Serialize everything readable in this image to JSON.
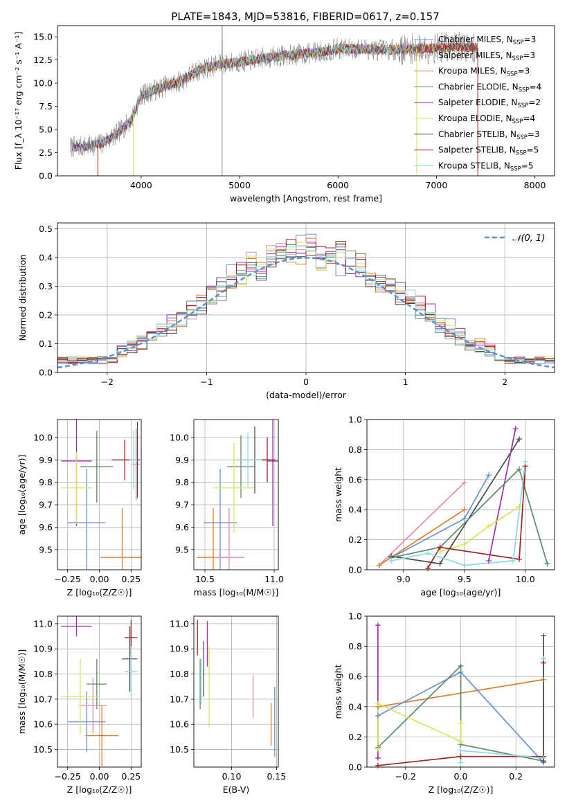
{
  "figure": {
    "title": "PLATE=1843, MJD=53816, FIBERID=0617, z=0.157"
  },
  "colors": {
    "blue": "#6a8fd8",
    "orange": "#e07b2a",
    "pink": "#e38ab0",
    "green": "#5b8a66",
    "purple": "#9c2fb0",
    "yellow": "#d6e85a",
    "dark": "#4a4a4a",
    "red": "#a51c1c",
    "cyan": "#86dbe4",
    "grey": "#8a8a8a"
  },
  "chart_data": [
    {
      "id": "spectrum",
      "type": "line",
      "xlabel": "wavelength [Angstrom, rest frame]",
      "ylabel": "Flux [f_λ 10⁻¹⁷ erg cm⁻² s⁻¹ A⁻¹]",
      "xlim": [
        3150,
        8200
      ],
      "ylim": [
        0,
        16.2
      ],
      "xticks": [
        4000,
        5000,
        6000,
        7000,
        8000
      ],
      "yticks": [
        0.0,
        2.5,
        5.0,
        7.5,
        10.0,
        12.5,
        15.0
      ],
      "grid": false,
      "legend_position": "top-right",
      "continuum": {
        "x": [
          3300,
          3450,
          3600,
          3750,
          3900,
          4000,
          4200,
          4400,
          4600,
          4800,
          5000,
          5200,
          5400,
          5600,
          5800,
          6000,
          6200,
          6400,
          6600,
          6800,
          7000,
          7200,
          7400
        ],
        "y": [
          3.1,
          3.2,
          3.5,
          4.5,
          6.0,
          8.7,
          9.5,
          10.2,
          11.5,
          12.0,
          12.3,
          12.6,
          12.9,
          13.1,
          13.3,
          13.7,
          13.7,
          13.6,
          13.6,
          13.7,
          13.8,
          13.9,
          13.8
        ]
      },
      "series": [
        {
          "name": "Chabrier MILES, N_SSP=3",
          "color": "#6a8fd8"
        },
        {
          "name": "Salpeter MILES, N_SSP=3",
          "color": "#e38ab0"
        },
        {
          "name": "Kroupa MILES, N_SSP=3",
          "color": "#e07b2a"
        },
        {
          "name": "Chabrier ELODIE, N_SSP=4",
          "color": "#5b8a66"
        },
        {
          "name": "Salpeter ELODIE, N_SSP=2",
          "color": "#9c2fb0"
        },
        {
          "name": "Kroupa ELODIE, N_SSP=4",
          "color": "#d6e85a"
        },
        {
          "name": "Chabrier STELIB, N_SSP=3",
          "color": "#4a4a4a"
        },
        {
          "name": "Salpeter STELIB, N_SSP=5",
          "color": "#a51c1c"
        },
        {
          "name": "Kroupa STELIB, N_SSP=5",
          "color": "#86dbe4"
        }
      ]
    },
    {
      "id": "residuals",
      "type": "line",
      "xlabel": "(data-model)/error",
      "ylabel": "Normed distribution",
      "xlim": [
        -2.5,
        2.5
      ],
      "ylim": [
        0,
        0.52
      ],
      "xticks": [
        -2,
        -1,
        0,
        1,
        2
      ],
      "yticks": [
        0.0,
        0.1,
        0.2,
        0.3,
        0.4,
        0.5
      ],
      "grid": true,
      "legend_position": "top-right",
      "reference": {
        "name": "𝒩(0, 1)",
        "color": "#5b8fd0"
      },
      "histogram_bin_width": 0.1
    },
    {
      "id": "age-vs-Z",
      "type": "scatter",
      "xlabel": "Z [log₁₀(Z/Z☉)]",
      "ylabel": "age  [log₁₀(age/yr)]",
      "xlim": [
        -0.33,
        0.33
      ],
      "ylim": [
        9.41,
        10.08
      ],
      "xticks": [
        -0.25,
        0.0,
        0.25
      ],
      "xtick_labels": [
        "−0.25",
        "0.00",
        "0.25"
      ],
      "yticks": [
        9.5,
        9.6,
        9.7,
        9.8,
        9.9,
        10.0
      ],
      "grid": true,
      "points": [
        {
          "x": -0.1,
          "y": 9.62,
          "ex": 0.15,
          "ey": 0.24,
          "color": "#6a8fd8"
        },
        {
          "x": 0.18,
          "y": 9.465,
          "ex": 0.17,
          "ey": 0.22,
          "color": "#e07b2a"
        },
        {
          "x": 0.29,
          "y": 9.88,
          "ex": 0.03,
          "ey": 0.16,
          "color": "#e38ab0"
        },
        {
          "x": -0.02,
          "y": 9.87,
          "ex": 0.13,
          "ey": 0.16,
          "color": "#5b8a66"
        },
        {
          "x": -0.18,
          "y": 9.895,
          "ex": 0.12,
          "ey": 0.29,
          "color": "#9c2fb0"
        },
        {
          "x": -0.18,
          "y": 9.775,
          "ex": 0.12,
          "ey": 0.16,
          "color": "#d6e85a"
        },
        {
          "x": 0.3,
          "y": 9.9,
          "ex": 0.02,
          "ey": 0.17,
          "color": "#4a4a4a"
        },
        {
          "x": 0.2,
          "y": 9.9,
          "ex": 0.1,
          "ey": 0.09,
          "color": "#a51c1c"
        },
        {
          "x": 0.27,
          "y": 9.9,
          "ex": 0.03,
          "ey": 0.13,
          "color": "#86dbe4"
        }
      ]
    },
    {
      "id": "age-vs-mass",
      "type": "scatter",
      "xlabel": "mass [log₁₀(M/M☉)]",
      "ylabel": "",
      "xlim": [
        10.42,
        11.03
      ],
      "ylim": [
        9.41,
        10.08
      ],
      "xticks": [
        10.5,
        11.0
      ],
      "xtick_labels": [
        "10.5",
        "11.0"
      ],
      "yticks": [
        9.5,
        9.6,
        9.7,
        9.8,
        9.9,
        10.0
      ],
      "grid": true,
      "points": [
        {
          "x": 10.61,
          "y": 9.62,
          "ex": 0.12,
          "ey": 0.24,
          "color": "#6a8fd8"
        },
        {
          "x": 10.56,
          "y": 9.465,
          "ex": 0.12,
          "ey": 0.22,
          "color": "#e07b2a"
        },
        {
          "x": 10.675,
          "y": 9.465,
          "ex": 0.11,
          "ey": 0.22,
          "color": "#e38ab0"
        },
        {
          "x": 10.76,
          "y": 9.87,
          "ex": 0.1,
          "ey": 0.14,
          "color": "#5b8a66"
        },
        {
          "x": 10.99,
          "y": 9.895,
          "ex": 0.04,
          "ey": 0.29,
          "color": "#9c2fb0"
        },
        {
          "x": 10.71,
          "y": 9.775,
          "ex": 0.15,
          "ey": 0.2,
          "color": "#d6e85a"
        },
        {
          "x": 10.86,
          "y": 9.9,
          "ex": 0.12,
          "ey": 0.15,
          "color": "#4a4a4a"
        },
        {
          "x": 10.95,
          "y": 9.9,
          "ex": 0.06,
          "ey": 0.1,
          "color": "#a51c1c"
        },
        {
          "x": 10.81,
          "y": 9.9,
          "ex": 0.1,
          "ey": 0.12,
          "color": "#86dbe4"
        }
      ]
    },
    {
      "id": "weight-vs-age",
      "type": "line",
      "xlabel": "age  [log₁₀(age/yr)]",
      "ylabel": "mass weight",
      "xlim": [
        8.7,
        10.24
      ],
      "ylim": [
        0,
        1.0
      ],
      "xticks": [
        9.0,
        9.5,
        10.0
      ],
      "xtick_labels": [
        "9.0",
        "9.5",
        "10.0"
      ],
      "yticks": [
        0.0,
        0.2,
        0.4,
        0.6,
        0.8,
        1.0
      ],
      "grid": true,
      "series": [
        {
          "color": "#e38ab0",
          "x": [
            8.8,
            9.5
          ],
          "y": [
            0.03,
            0.58
          ]
        },
        {
          "color": "#e07b2a",
          "x": [
            8.8,
            9.5
          ],
          "y": [
            0.03,
            0.4
          ]
        },
        {
          "color": "#6a8fd8",
          "x": [
            8.9,
            9.5,
            9.7
          ],
          "y": [
            0.08,
            0.34,
            0.63
          ]
        },
        {
          "color": "#4a4a4a",
          "x": [
            8.9,
            9.3,
            9.95
          ],
          "y": [
            0.09,
            0.04,
            0.87
          ]
        },
        {
          "color": "#9c2fb0",
          "x": [
            9.7,
            9.92
          ],
          "y": [
            0.06,
            0.94
          ]
        },
        {
          "color": "#5b8a66",
          "x": [
            8.9,
            9.3,
            9.95,
            10.18
          ],
          "y": [
            0.08,
            0.15,
            0.67,
            0.04
          ]
        },
        {
          "color": "#d6e85a",
          "x": [
            9.3,
            9.5,
            9.7,
            9.95
          ],
          "y": [
            0.12,
            0.17,
            0.29,
            0.42
          ]
        },
        {
          "color": "#a51c1c",
          "x": [
            9.2,
            9.3,
            9.95,
            10.0
          ],
          "y": [
            0.01,
            0.15,
            0.07,
            0.69
          ]
        },
        {
          "color": "#86dbe4",
          "x": [
            8.9,
            9.2,
            9.5,
            9.9,
            10.0
          ],
          "y": [
            0.06,
            0.11,
            0.03,
            0.06,
            0.72
          ]
        }
      ]
    },
    {
      "id": "mass-vs-Z",
      "type": "scatter",
      "xlabel": "Z [log₁₀(Z/Z☉)]",
      "ylabel": "mass [log₁₀(M/M☉)]",
      "xlim": [
        -0.33,
        0.33
      ],
      "ylim": [
        10.43,
        11.03
      ],
      "xticks": [
        -0.25,
        0.0,
        0.25
      ],
      "xtick_labels": [
        "−0.25",
        "0.00",
        "0.25"
      ],
      "yticks": [
        10.5,
        10.6,
        10.7,
        10.8,
        10.9,
        11.0
      ],
      "grid": true,
      "points": [
        {
          "x": -0.1,
          "y": 10.61,
          "ex": 0.15,
          "ey": 0.12,
          "color": "#6a8fd8"
        },
        {
          "x": 0.02,
          "y": 10.555,
          "ex": 0.13,
          "ey": 0.12,
          "color": "#e07b2a"
        },
        {
          "x": -0.05,
          "y": 10.675,
          "ex": 0.11,
          "ey": 0.11,
          "color": "#e38ab0"
        },
        {
          "x": -0.02,
          "y": 10.76,
          "ex": 0.08,
          "ey": 0.1,
          "color": "#5b8a66"
        },
        {
          "x": -0.18,
          "y": 10.99,
          "ex": 0.12,
          "ey": 0.04,
          "color": "#9c2fb0"
        },
        {
          "x": -0.15,
          "y": 10.71,
          "ex": 0.15,
          "ey": 0.15,
          "color": "#d6e85a"
        },
        {
          "x": 0.24,
          "y": 10.86,
          "ex": 0.06,
          "ey": 0.13,
          "color": "#4a4a4a"
        },
        {
          "x": 0.25,
          "y": 10.945,
          "ex": 0.05,
          "ey": 0.07,
          "color": "#a51c1c"
        },
        {
          "x": 0.25,
          "y": 10.81,
          "ex": 0.05,
          "ey": 0.1,
          "color": "#86dbe4"
        }
      ]
    },
    {
      "id": "mass-vs-EBV",
      "type": "scatter",
      "xlabel": "E(B-V)",
      "ylabel": "",
      "xlim": [
        0.058,
        0.152
      ],
      "ylim": [
        10.43,
        11.03
      ],
      "xticks": [
        0.1,
        0.15
      ],
      "xtick_labels": [
        "0.10",
        "0.15"
      ],
      "yticks": [
        10.5,
        10.6,
        10.7,
        10.8,
        10.9,
        11.0
      ],
      "grid": true,
      "points": [
        {
          "x": 0.148,
          "y": 10.61,
          "ex": 0,
          "ey": 0.14,
          "color": "#6a8fd8"
        },
        {
          "x": 0.144,
          "y": 10.6,
          "ex": 0,
          "ey": 0.085,
          "color": "#e07b2a"
        },
        {
          "x": 0.124,
          "y": 10.71,
          "ex": 0,
          "ey": 0.085,
          "color": "#e38ab0"
        },
        {
          "x": 0.065,
          "y": 10.76,
          "ex": 0,
          "ey": 0.1,
          "color": "#5b8a66"
        },
        {
          "x": 0.073,
          "y": 10.92,
          "ex": 0,
          "ey": 0.09,
          "color": "#9c2fb0"
        },
        {
          "x": 0.075,
          "y": 10.75,
          "ex": 0,
          "ey": 0.16,
          "color": "#d6e85a"
        },
        {
          "x": 0.069,
          "y": 10.82,
          "ex": 0,
          "ey": 0.11,
          "color": "#4a4a4a"
        },
        {
          "x": 0.062,
          "y": 10.945,
          "ex": 0,
          "ey": 0.07,
          "color": "#a51c1c"
        },
        {
          "x": 0.066,
          "y": 10.77,
          "ex": 0,
          "ey": 0.09,
          "color": "#86dbe4"
        }
      ]
    },
    {
      "id": "weight-vs-Z",
      "type": "line",
      "xlabel": "Z [log₁₀(Z/Z☉)]",
      "ylabel": "mass weight",
      "xlim": [
        -0.34,
        0.34
      ],
      "ylim": [
        0,
        1.0
      ],
      "xticks": [
        -0.2,
        0.0,
        0.2
      ],
      "xtick_labels": [
        "−0.2",
        "0.0",
        "0.2"
      ],
      "yticks": [
        0.0,
        0.2,
        0.4,
        0.6,
        0.8,
        1.0
      ],
      "grid": true,
      "series": [
        {
          "color": "#9c2fb0",
          "x": [
            -0.3,
            -0.3
          ],
          "y": [
            0.06,
            0.94
          ]
        },
        {
          "color": "#e07b2a",
          "x": [
            -0.3,
            0.3
          ],
          "y": [
            0.4,
            0.58
          ]
        },
        {
          "color": "#6a8fd8",
          "x": [
            -0.3,
            0.0,
            0.3
          ],
          "y": [
            0.34,
            0.63,
            0.03
          ]
        },
        {
          "color": "#5b8a66",
          "x": [
            -0.3,
            0.0,
            0.0,
            0.3
          ],
          "y": [
            0.13,
            0.67,
            0.15,
            0.04
          ]
        },
        {
          "color": "#d6e85a",
          "x": [
            -0.3,
            -0.3,
            0.0,
            0.0
          ],
          "y": [
            0.12,
            0.42,
            0.17,
            0.29
          ]
        },
        {
          "color": "#a51c1c",
          "x": [
            -0.3,
            0.0,
            0.3,
            0.3
          ],
          "y": [
            0.01,
            0.07,
            0.07,
            0.69
          ]
        },
        {
          "color": "#86dbe4",
          "x": [
            0.0,
            0.0,
            0.3,
            0.3
          ],
          "y": [
            0.03,
            0.11,
            0.06,
            0.72
          ]
        },
        {
          "color": "#4a4a4a",
          "x": [
            0.3,
            0.3
          ],
          "y": [
            0.04,
            0.87
          ]
        }
      ]
    }
  ]
}
